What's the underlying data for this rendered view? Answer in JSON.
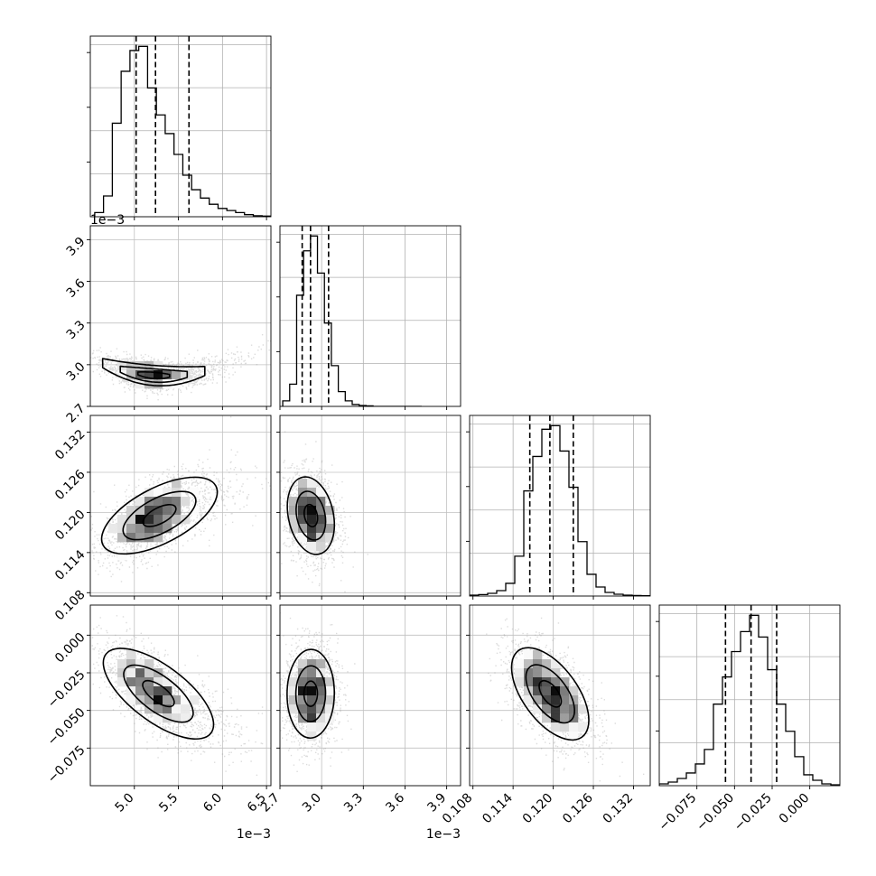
{
  "chart_data": {
    "type": "corner",
    "grid": true,
    "parameters": [
      {
        "key": "p1",
        "range": [
          4.5,
          6.55
        ],
        "ticks": [
          "5.0",
          "5.5",
          "6.0",
          "6.5"
        ],
        "tick_values": [
          5.0,
          5.5,
          6.0,
          6.5
        ],
        "offset_label": "1e−3",
        "quantiles": [
          5.02,
          5.24,
          5.62
        ],
        "peak": 5.22
      },
      {
        "key": "p2",
        "range": [
          2.7,
          4.0
        ],
        "ticks": [
          "2.7",
          "3.0",
          "3.3",
          "3.6",
          "3.9"
        ],
        "tick_values": [
          2.7,
          3.0,
          3.3,
          3.6,
          3.9
        ],
        "offset_label": "1e−3",
        "quantiles": [
          2.86,
          2.92,
          3.05
        ],
        "peak": 2.93
      },
      {
        "key": "p3",
        "range": [
          0.1075,
          0.1345
        ],
        "ticks": [
          "0.108",
          "0.114",
          "0.120",
          "0.126",
          "0.132"
        ],
        "tick_values": [
          0.108,
          0.114,
          0.12,
          0.126,
          0.132
        ],
        "offset_label": "",
        "quantiles": [
          0.1165,
          0.1195,
          0.123
        ],
        "peak": 0.1195
      },
      {
        "key": "p4",
        "range": [
          -0.1,
          0.02
        ],
        "ticks": [
          "−0.075",
          "−0.050",
          "−0.025",
          "0.000"
        ],
        "tick_values": [
          -0.075,
          -0.05,
          -0.025,
          0.0
        ],
        "offset_label": "",
        "quantiles": [
          -0.056,
          -0.039,
          -0.022
        ],
        "peak": -0.037
      }
    ],
    "histograms": [
      {
        "param": 0,
        "edges_start": 4.55,
        "bin_width": 0.1,
        "counts": [
          2,
          10,
          45,
          70,
          80,
          82,
          62,
          49,
          40,
          30,
          20,
          13,
          9,
          6,
          4,
          3,
          2,
          1,
          0.5,
          0.3
        ]
      },
      {
        "param": 1,
        "edges_start": 2.72,
        "bin_width": 0.05,
        "counts": [
          3,
          12,
          60,
          84,
          92,
          72,
          45,
          22,
          8,
          3,
          1,
          0.5,
          0.3,
          0,
          0,
          0,
          0,
          0,
          0,
          0
        ]
      },
      {
        "param": 2,
        "edges_start": 0.1075,
        "bin_width": 0.00135,
        "counts": [
          0.5,
          0.8,
          1.5,
          3,
          7,
          22,
          58,
          77,
          92,
          94,
          80,
          60,
          30,
          12,
          5,
          2,
          1,
          0.5,
          0.3,
          0.2
        ]
      },
      {
        "param": 3,
        "edges_start": -0.1,
        "bin_width": 0.006,
        "counts": [
          1,
          2,
          4,
          7,
          12,
          20,
          45,
          60,
          74,
          85,
          94,
          82,
          64,
          45,
          30,
          16,
          6,
          3,
          1,
          0.5
        ]
      }
    ],
    "panels_2d": [
      {
        "x": 0,
        "y": 1,
        "relation": "u-shaped"
      },
      {
        "x": 0,
        "y": 2,
        "correlation": 0.6
      },
      {
        "x": 1,
        "y": 2,
        "correlation": -0.2
      },
      {
        "x": 0,
        "y": 3,
        "correlation": -0.7
      },
      {
        "x": 1,
        "y": 3,
        "correlation": 0.0
      },
      {
        "x": 2,
        "y": 3,
        "correlation": -0.55
      }
    ],
    "contour_levels": 3
  }
}
